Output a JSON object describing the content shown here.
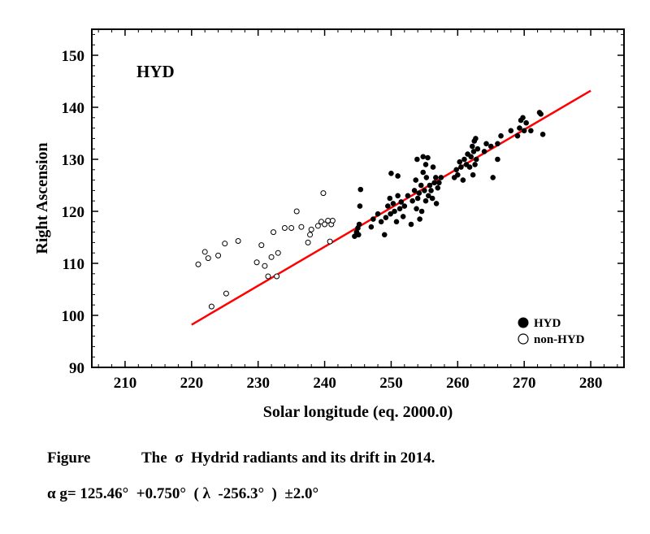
{
  "chart_data": {
    "type": "scatter",
    "title": "HYD",
    "xlabel": "Solar longitude (eq. 2000.0)",
    "ylabel": "Right Ascension",
    "xlim": [
      205,
      285
    ],
    "ylim": [
      90,
      155
    ],
    "xticks": [
      210,
      220,
      230,
      240,
      250,
      260,
      270,
      280
    ],
    "yticks": [
      90,
      100,
      110,
      120,
      130,
      140,
      150
    ],
    "legend_position": "bottom-right",
    "series": [
      {
        "name": "HYD",
        "marker": "filled-circle",
        "points": [
          [
            244.5,
            115.2
          ],
          [
            244.8,
            116.0
          ],
          [
            245.0,
            116.8
          ],
          [
            245.2,
            117.5
          ],
          [
            245.3,
            121.0
          ],
          [
            245.4,
            124.2
          ],
          [
            245.1,
            115.5
          ],
          [
            247.0,
            117.0
          ],
          [
            247.3,
            118.5
          ],
          [
            248.0,
            119.5
          ],
          [
            248.5,
            118.0
          ],
          [
            249.0,
            115.5
          ],
          [
            249.2,
            118.8
          ],
          [
            249.5,
            121.0
          ],
          [
            249.8,
            122.5
          ],
          [
            249.9,
            119.5
          ],
          [
            250.0,
            127.3
          ],
          [
            250.3,
            121.5
          ],
          [
            250.5,
            120.0
          ],
          [
            250.8,
            118.0
          ],
          [
            251.0,
            123.0
          ],
          [
            251.0,
            126.8
          ],
          [
            251.3,
            120.5
          ],
          [
            251.5,
            121.8
          ],
          [
            251.8,
            119.0
          ],
          [
            252.0,
            121.0
          ],
          [
            252.5,
            123.0
          ],
          [
            253.0,
            117.5
          ],
          [
            253.2,
            122.0
          ],
          [
            253.5,
            124.0
          ],
          [
            253.7,
            126.0
          ],
          [
            253.9,
            130.0
          ],
          [
            254.0,
            122.5
          ],
          [
            254.2,
            123.5
          ],
          [
            254.5,
            125.0
          ],
          [
            254.6,
            120.0
          ],
          [
            254.8,
            130.5
          ],
          [
            255.0,
            124.0
          ],
          [
            255.2,
            122.0
          ],
          [
            255.3,
            126.5
          ],
          [
            255.5,
            130.3
          ],
          [
            255.6,
            123.0
          ],
          [
            255.8,
            125.0
          ],
          [
            256.0,
            124.0
          ],
          [
            256.2,
            122.5
          ],
          [
            256.3,
            128.5
          ],
          [
            256.5,
            125.5
          ],
          [
            256.7,
            126.5
          ],
          [
            256.8,
            121.5
          ],
          [
            257.0,
            124.5
          ],
          [
            257.2,
            125.5
          ],
          [
            257.5,
            126.5
          ],
          [
            254.8,
            127.5
          ],
          [
            255.2,
            129.0
          ],
          [
            253.8,
            120.5
          ],
          [
            254.3,
            118.5
          ],
          [
            259.5,
            126.5
          ],
          [
            259.8,
            128.0
          ],
          [
            260.0,
            127.0
          ],
          [
            260.3,
            129.5
          ],
          [
            260.5,
            128.5
          ],
          [
            260.8,
            126.0
          ],
          [
            261.0,
            130.0
          ],
          [
            261.3,
            129.0
          ],
          [
            261.5,
            131.0
          ],
          [
            261.8,
            128.5
          ],
          [
            262.0,
            130.5
          ],
          [
            262.2,
            132.5
          ],
          [
            262.4,
            131.5
          ],
          [
            262.5,
            133.5
          ],
          [
            262.6,
            129.0
          ],
          [
            262.7,
            134.0
          ],
          [
            262.8,
            130.0
          ],
          [
            263.0,
            132.0
          ],
          [
            262.3,
            127.0
          ],
          [
            264.0,
            131.5
          ],
          [
            264.3,
            133.0
          ],
          [
            265.0,
            132.5
          ],
          [
            265.3,
            126.5
          ],
          [
            266.0,
            133.0
          ],
          [
            266.5,
            134.5
          ],
          [
            266.0,
            130.0
          ],
          [
            268.0,
            135.5
          ],
          [
            269.0,
            134.5
          ],
          [
            269.3,
            136.0
          ],
          [
            269.5,
            137.5
          ],
          [
            269.8,
            138.0
          ],
          [
            270.0,
            135.5
          ],
          [
            270.3,
            137.0
          ],
          [
            271.0,
            135.5
          ],
          [
            272.5,
            138.7
          ],
          [
            272.8,
            134.8
          ],
          [
            272.3,
            139.0
          ]
        ]
      },
      {
        "name": "non-HYD",
        "marker": "open-circle",
        "points": [
          [
            221.0,
            109.8
          ],
          [
            222.0,
            112.2
          ],
          [
            222.5,
            111.0
          ],
          [
            223.0,
            101.7
          ],
          [
            224.0,
            111.5
          ],
          [
            225.0,
            113.8
          ],
          [
            225.2,
            104.2
          ],
          [
            227.0,
            114.3
          ],
          [
            229.8,
            110.2
          ],
          [
            230.5,
            113.5
          ],
          [
            231.0,
            109.5
          ],
          [
            231.5,
            107.5
          ],
          [
            232.0,
            111.2
          ],
          [
            232.3,
            116.0
          ],
          [
            232.8,
            107.5
          ],
          [
            233.0,
            112.0
          ],
          [
            234.0,
            116.8
          ],
          [
            235.0,
            116.8
          ],
          [
            235.8,
            120.0
          ],
          [
            236.5,
            117.0
          ],
          [
            237.5,
            114.0
          ],
          [
            237.8,
            115.5
          ],
          [
            238.0,
            116.5
          ],
          [
            239.0,
            117.2
          ],
          [
            239.5,
            118.0
          ],
          [
            239.8,
            123.5
          ],
          [
            240.0,
            117.5
          ],
          [
            240.5,
            118.2
          ],
          [
            240.8,
            114.2
          ],
          [
            241.0,
            117.5
          ],
          [
            241.2,
            118.2
          ]
        ]
      }
    ],
    "fit_line": {
      "name": "drift",
      "color": "#ff0000",
      "x": [
        220,
        280
      ],
      "y": [
        98.2,
        143.2
      ]
    }
  },
  "caption": {
    "figure_label": "Figure",
    "figure_text": "The  σ  Hydrid radiants and its drift in 2014.",
    "formula": "α g= 125.46°  +0.750°  ( λ  -256.3°  )  ±2.0°"
  }
}
